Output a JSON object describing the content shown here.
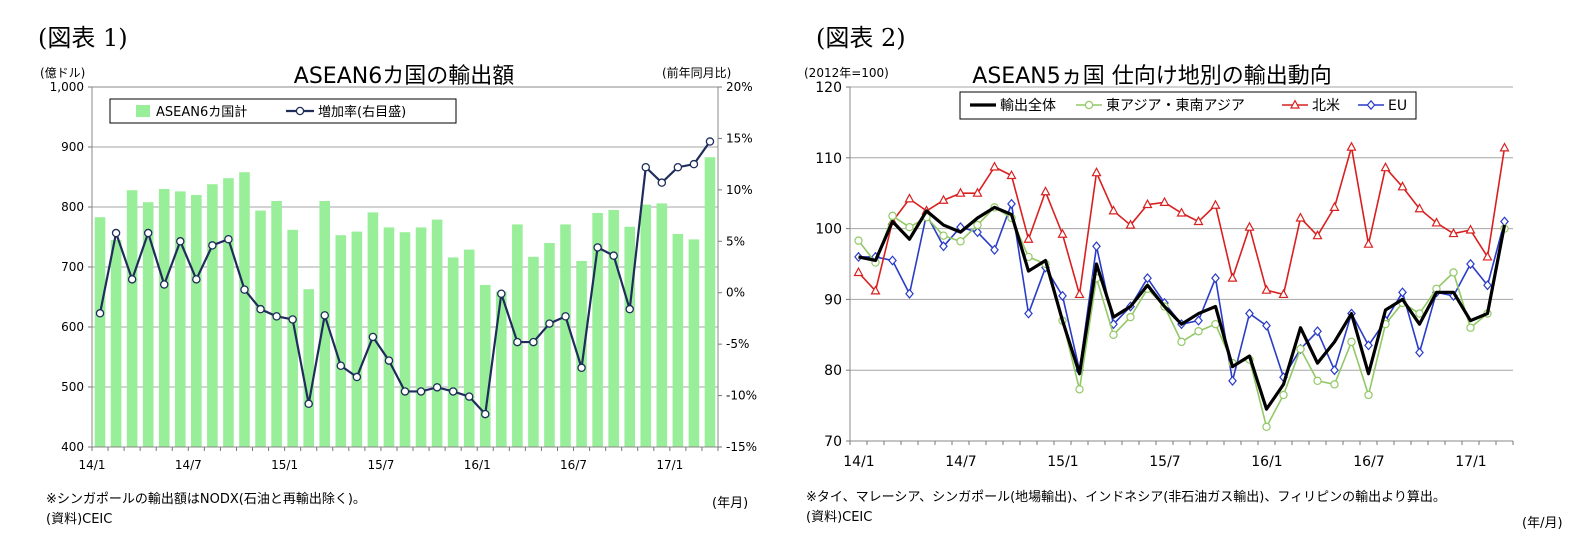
{
  "chart_data": [
    {
      "type": "bar",
      "figure_label": "(図表 1)",
      "title": "ASEAN6カ国の輸出額",
      "left_unit": "(億ドル)",
      "right_unit": "(前年同月比)",
      "xlabel": "(年月)",
      "note": "※シンガポールの輸出額はNODX(石油と再輸出除く)。",
      "source": "(資料)CEIC",
      "ylim": [
        400,
        1000
      ],
      "yticks": [
        "400",
        "500",
        "600",
        "700",
        "800",
        "900",
        "1,000"
      ],
      "y2lim": [
        -15,
        20
      ],
      "y2ticks": [
        "-15%",
        "-10%",
        "-5%",
        "0%",
        "5%",
        "10%",
        "15%",
        "20%"
      ],
      "xticks": [
        "14/1",
        "14/7",
        "15/1",
        "15/7",
        "16/1",
        "16/7",
        "17/1"
      ],
      "legend": {
        "bars": "ASEAN6カ国計",
        "line": "増加率(右目盛)"
      },
      "bar_values": [
        783,
        745,
        828,
        808,
        830,
        826,
        820,
        838,
        848,
        858,
        794,
        810,
        762,
        663,
        810,
        753,
        759,
        791,
        766,
        758,
        766,
        779,
        716,
        729,
        670,
        659,
        771,
        717,
        740,
        771,
        710,
        790,
        795,
        767,
        804,
        806,
        755,
        746,
        883
      ],
      "growth_values": [
        -2.0,
        5.8,
        1.3,
        5.8,
        0.8,
        5.0,
        1.3,
        4.6,
        5.2,
        0.3,
        -1.6,
        -2.3,
        -2.6,
        -10.8,
        -2.2,
        -7.1,
        -8.2,
        -4.3,
        -6.6,
        -9.6,
        -9.6,
        -9.2,
        -9.6,
        -10.1,
        -11.8,
        -0.1,
        -4.8,
        -4.8,
        -3.0,
        -2.3,
        -7.3,
        4.4,
        3.6,
        -1.6,
        12.2,
        10.7,
        12.2,
        12.5,
        14.7
      ]
    },
    {
      "type": "line",
      "figure_label": "(図表 2)",
      "title": "ASEAN5ヵ国 仕向け地別の輸出動向",
      "left_unit": "(2012年=100)",
      "xlabel": "(年/月)",
      "note": "※タイ、マレーシア、シンガポール(地場輸出)、インドネシア(非石油ガス輸出)、フィリピンの輸出より算出。",
      "source": "(資料)CEIC",
      "ylim": [
        70,
        120
      ],
      "yticks": [
        "70",
        "80",
        "90",
        "100",
        "110",
        "120"
      ],
      "xticks": [
        "14/1",
        "14/7",
        "15/1",
        "15/7",
        "16/1",
        "16/7",
        "17/1"
      ],
      "series": [
        {
          "name": "輸出全体",
          "color": "#000000",
          "marker": "none",
          "values": [
            96,
            95.5,
            101,
            98.5,
            102.5,
            100.5,
            99.5,
            101.5,
            103,
            102,
            94,
            95.5,
            87,
            79.5,
            95,
            87.5,
            89,
            92,
            89,
            86.5,
            88,
            89,
            80.5,
            82,
            74.5,
            78,
            86,
            81,
            84,
            88,
            79.5,
            88.5,
            90,
            86.5,
            91,
            91,
            87,
            88,
            100.5
          ]
        },
        {
          "name": "東アジア・東南アジア",
          "color": "#92c966",
          "marker": "circle",
          "values": [
            98.3,
            95.2,
            101.8,
            100.2,
            101.6,
            99,
            98.2,
            100.5,
            103,
            101.5,
            96,
            95,
            87,
            77.3,
            93,
            85,
            87.5,
            91.5,
            89,
            84,
            85.5,
            86.5,
            81,
            81.5,
            72,
            76.5,
            83,
            78.5,
            78,
            84,
            76.5,
            86.5,
            89.5,
            88,
            91.5,
            93.8,
            86,
            88,
            100
          ]
        },
        {
          "name": "北米",
          "color": "#d92020",
          "marker": "triangle",
          "values": [
            93.8,
            91.2,
            101,
            104.2,
            102.5,
            104,
            105,
            105,
            108.7,
            107.5,
            98.5,
            105.2,
            99.2,
            90.7,
            107.9,
            102.5,
            100.5,
            103.4,
            103.7,
            102.2,
            101,
            103.3,
            93,
            100.2,
            91.3,
            90.7,
            101.5,
            99,
            103,
            111.5,
            97.8,
            108.6,
            105.9,
            102.8,
            100.8,
            99.3,
            99.8,
            96,
            111.4
          ]
        },
        {
          "name": "EU",
          "color": "#2a3cc8",
          "marker": "diamond",
          "values": [
            96,
            96,
            95.5,
            90.8,
            102,
            97.5,
            100.2,
            99.5,
            97,
            103.5,
            88,
            94.5,
            90.5,
            80,
            97.5,
            86.5,
            89,
            93,
            89.5,
            86.5,
            87,
            93,
            78.5,
            88,
            86.3,
            79,
            83,
            85.5,
            80,
            88,
            83.5,
            87,
            91,
            82.5,
            91,
            90.5,
            95,
            92,
            101
          ]
        }
      ]
    }
  ]
}
